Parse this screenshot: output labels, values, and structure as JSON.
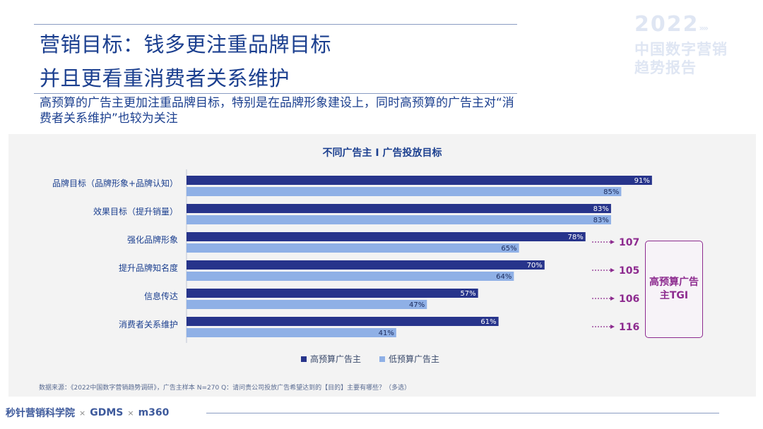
{
  "header": {
    "title_line1": "营销目标：钱多更注重品牌目标",
    "title_line2": "并且更看重消费者关系维护",
    "subtitle": "高预算的广告主更加注重品牌目标，特别是在品牌形象建设上，同时高预算的广告主对“消费者关系维护”也较为关注"
  },
  "brand": {
    "year": "2022",
    "arrows": "»»",
    "line1": "中国数字营销",
    "line2": "趋势报告"
  },
  "colors": {
    "high": "#27348b",
    "low": "#8fb0e6",
    "title": "#1b3f8f",
    "tgi": "#8d2b8f"
  },
  "chart_data": {
    "type": "bar",
    "title": "不同广告主 I 广告投放目标",
    "categories": [
      "品牌目标（品牌形象+品牌认知）",
      "效果目标（提升销量）",
      "强化品牌形象",
      "提升品牌知名度",
      "信息传达",
      "消费者关系维护"
    ],
    "series": [
      {
        "name": "高预算广告主",
        "values": [
          91,
          83,
          78,
          70,
          57,
          61
        ]
      },
      {
        "name": "低预算广告主",
        "values": [
          85,
          83,
          65,
          64,
          47,
          41
        ]
      }
    ],
    "tgi": [
      null,
      null,
      107,
      105,
      106,
      116
    ],
    "tgi_label": "高预算广告主TGI",
    "value_suffix": "%",
    "xlim": [
      0,
      100
    ],
    "grid": false,
    "legend_position": "bottom"
  },
  "footnote": "数据来源：《2022中国数字营销趋势调研》，广告主样本 N=270    Q：请问贵公司投放广告希望达到的【目的】主要有哪些？（多选）",
  "footer": {
    "logo1": "秒针营销科学院",
    "x1": "×",
    "logo2": "GDMS",
    "x2": "×",
    "logo3": "m360"
  }
}
